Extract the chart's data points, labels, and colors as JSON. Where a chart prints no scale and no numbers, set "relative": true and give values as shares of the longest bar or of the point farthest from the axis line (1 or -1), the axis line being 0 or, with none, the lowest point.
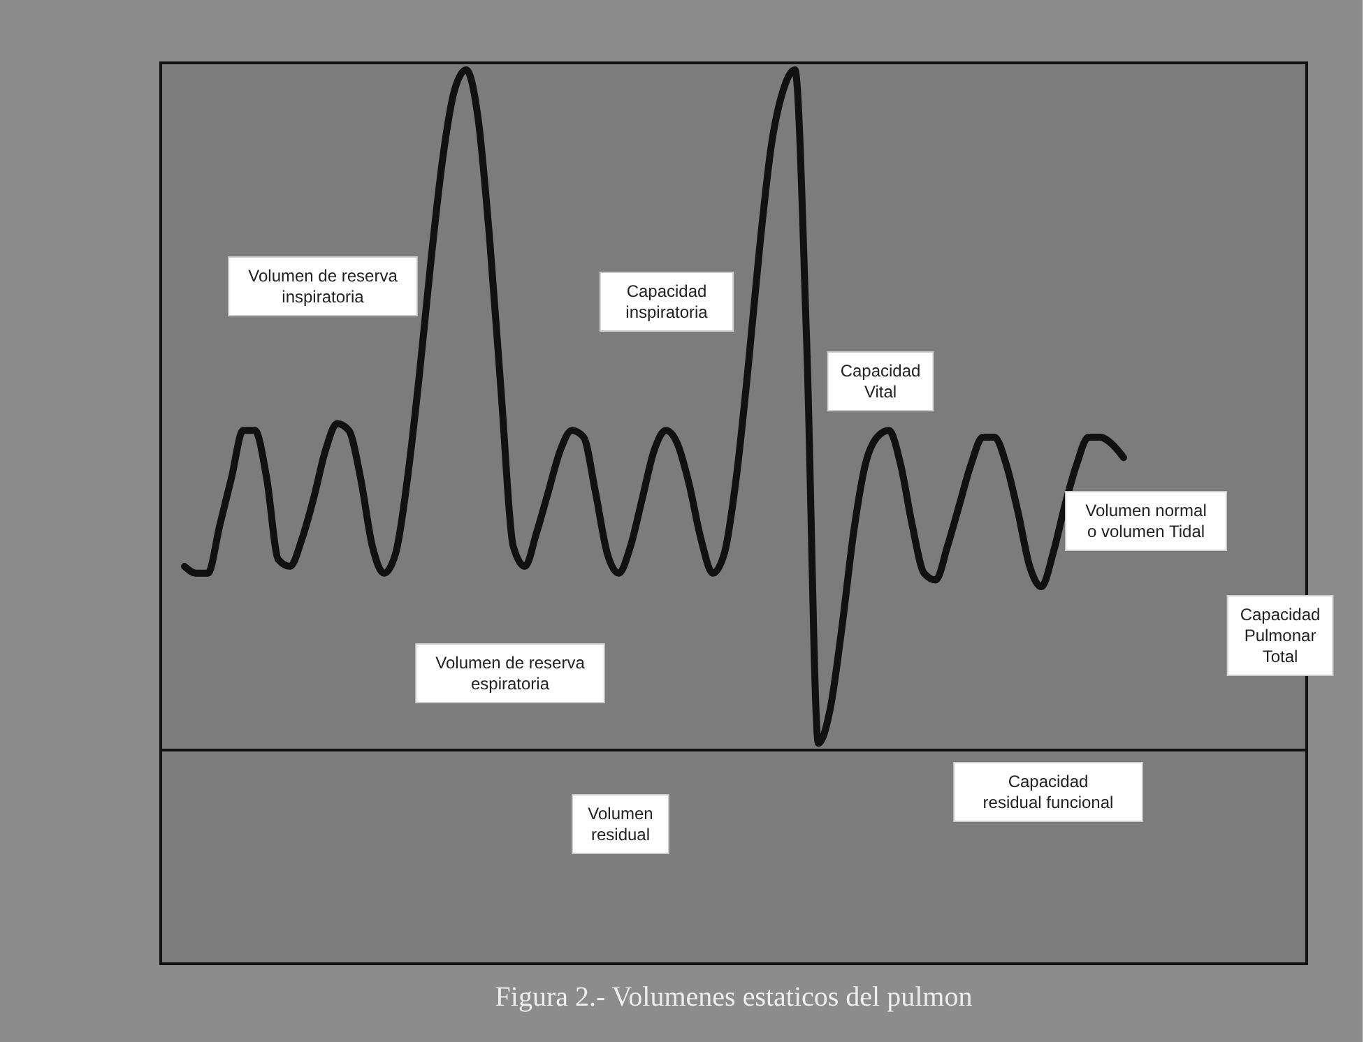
{
  "chart_data": {
    "type": "line",
    "relative": true,
    "title": "Figura 2.- Volumenes estaticos del pulmon",
    "categories": [
      null,
      null,
      null,
      null,
      null,
      null,
      null,
      null,
      null,
      null,
      null,
      null,
      null,
      null,
      null,
      null,
      null,
      null,
      null,
      null,
      null,
      null,
      null,
      null,
      null,
      null,
      null,
      null,
      null,
      null,
      null,
      null,
      null,
      null,
      null,
      null,
      null,
      null,
      null,
      null,
      null,
      null,
      null,
      null,
      null,
      null,
      null,
      null,
      null,
      null,
      null,
      null,
      null,
      null,
      null,
      null,
      null,
      null,
      null,
      null,
      null,
      null,
      null,
      null,
      null,
      null,
      null,
      null,
      null,
      null,
      null,
      null,
      null,
      null,
      null,
      null,
      null,
      null,
      null,
      null,
      null
    ],
    "values": [
      0.27,
      0.26,
      0.26,
      0.33,
      0.4,
      0.47,
      0.47,
      0.4,
      0.28,
      0.27,
      0.31,
      0.37,
      0.44,
      0.48,
      0.47,
      0.4,
      0.3,
      0.26,
      0.29,
      0.4,
      0.55,
      0.72,
      0.87,
      0.97,
      1.0,
      0.93,
      0.75,
      0.52,
      0.3,
      0.27,
      0.32,
      0.38,
      0.44,
      0.47,
      0.46,
      0.38,
      0.29,
      0.26,
      0.3,
      0.37,
      0.44,
      0.47,
      0.45,
      0.39,
      0.31,
      0.26,
      0.29,
      0.4,
      0.56,
      0.74,
      0.89,
      0.97,
      1.0,
      0.6,
      0.01,
      0.06,
      0.18,
      0.32,
      0.42,
      0.46,
      0.47,
      0.42,
      0.33,
      0.26,
      0.25,
      0.3,
      0.36,
      0.42,
      0.46,
      0.46,
      0.42,
      0.35,
      0.27,
      0.24,
      0.29,
      0.36,
      0.42,
      0.46,
      0.46,
      0.45,
      0.43
    ],
    "color": "#111111",
    "annotations": [
      "Volumen de reserva\ninspiratoria",
      "Capacidad\ninspiratoria",
      "Capacidad\nVital",
      "Volumen normal\no volumen Tidal",
      "Capacidad\nPulmonar\nTotal",
      "Volumen de reserva\nespiratoria",
      "Capacidad\nresidual funcional",
      "Volumen\nresidual"
    ]
  }
}
